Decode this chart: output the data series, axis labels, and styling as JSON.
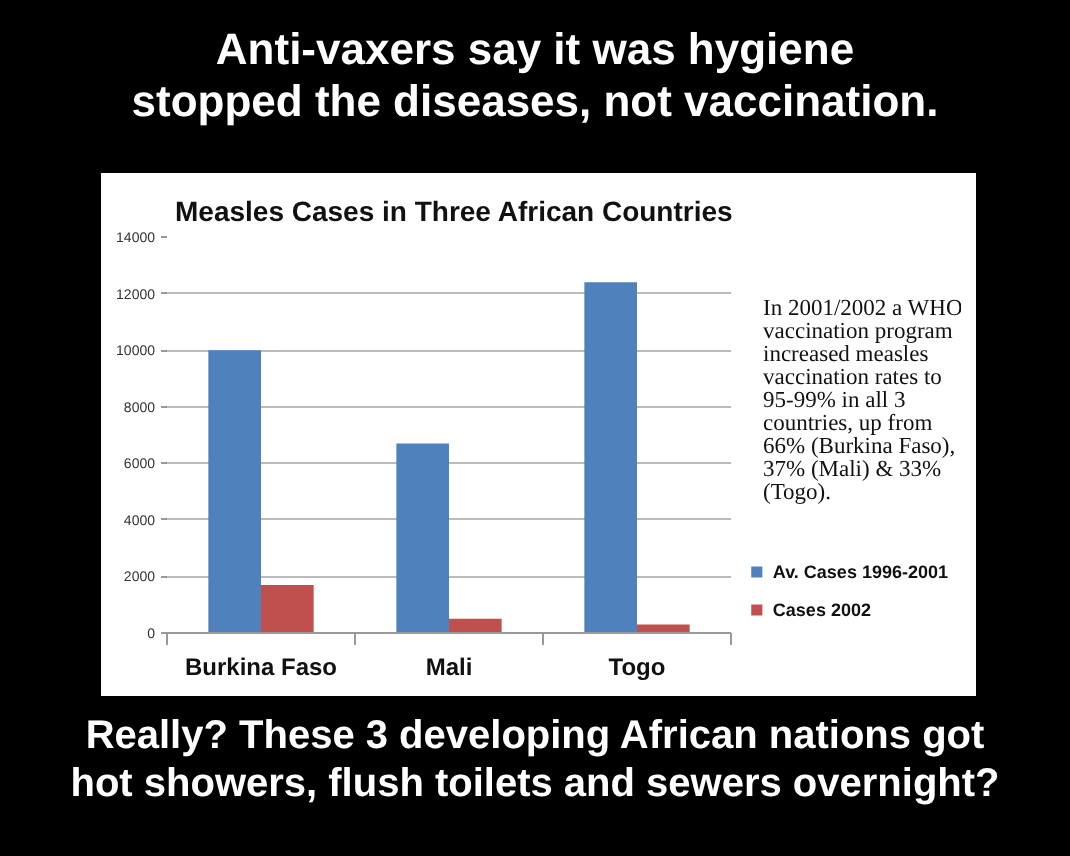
{
  "chart_data": {
    "type": "bar",
    "title": "Measles Cases in Three African Countries",
    "categories": [
      "Burkina Faso",
      "Mali",
      "Togo"
    ],
    "series": [
      {
        "name": "Av. Cases 1996-2001",
        "color": "#4f81bd",
        "values": [
          10000,
          6700,
          12400
        ]
      },
      {
        "name": "Cases 2002",
        "color": "#c0504d",
        "values": [
          1700,
          500,
          300
        ]
      }
    ],
    "ylim": [
      0,
      14000
    ],
    "yticks": [
      0,
      2000,
      4000,
      6000,
      8000,
      10000,
      12000,
      14000
    ],
    "grid": "y",
    "legend": "right",
    "annotations": [
      "Anti-vaxers say it was hygiene stopped the diseases, not vaccination.",
      "In 2001/2002 a WHO vaccination program increased measles vaccination rates to 95-99% in all 3 countries, up from 66% (Burkina Faso), 37% (Mali) & 33% (Togo).",
      "Really? These 3 developing African nations got hot showers, flush toilets and sewers overnight?"
    ]
  }
}
